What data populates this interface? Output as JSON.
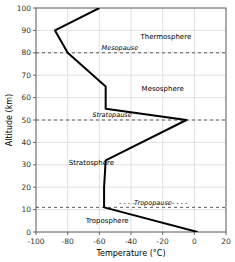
{
  "chart_data": {
    "type": "line",
    "xlabel": "Temperature (°C)",
    "ylabel": "Altitude (km)",
    "xlim": [
      -100,
      20
    ],
    "ylim": [
      0,
      100
    ],
    "xticks": [
      -100,
      -80,
      -60,
      -40,
      -20,
      0,
      20
    ],
    "yticks": [
      0,
      10,
      20,
      30,
      40,
      50,
      60,
      70,
      80,
      90,
      100
    ],
    "grid": true,
    "color": "black",
    "x": [
      2,
      -57,
      -57,
      -56,
      -5,
      -56,
      -56,
      -80,
      -88,
      -60
    ],
    "values": [
      0,
      11,
      20,
      32,
      50,
      55,
      65,
      80,
      90,
      100
    ],
    "reference_lines": [
      {
        "y": 11,
        "label": "- - - -Tropopause- - - -",
        "label_x": -26,
        "label_y": 11.5
      },
      {
        "y": 50,
        "label": "Stratopause",
        "label_x": -52,
        "label_y": 50.8
      },
      {
        "y": 80,
        "label": "Mesopause",
        "label_x": -47,
        "label_y": 80.8
      }
    ],
    "annotations": [
      {
        "text": "Troposphere",
        "x": -55,
        "y": 5
      },
      {
        "text": "Stratosphere",
        "x": -65,
        "y": 31
      },
      {
        "text": "Mesosphere",
        "x": -20,
        "y": 64
      },
      {
        "text": "Thermosphere",
        "x": -18,
        "y": 87
      }
    ]
  }
}
